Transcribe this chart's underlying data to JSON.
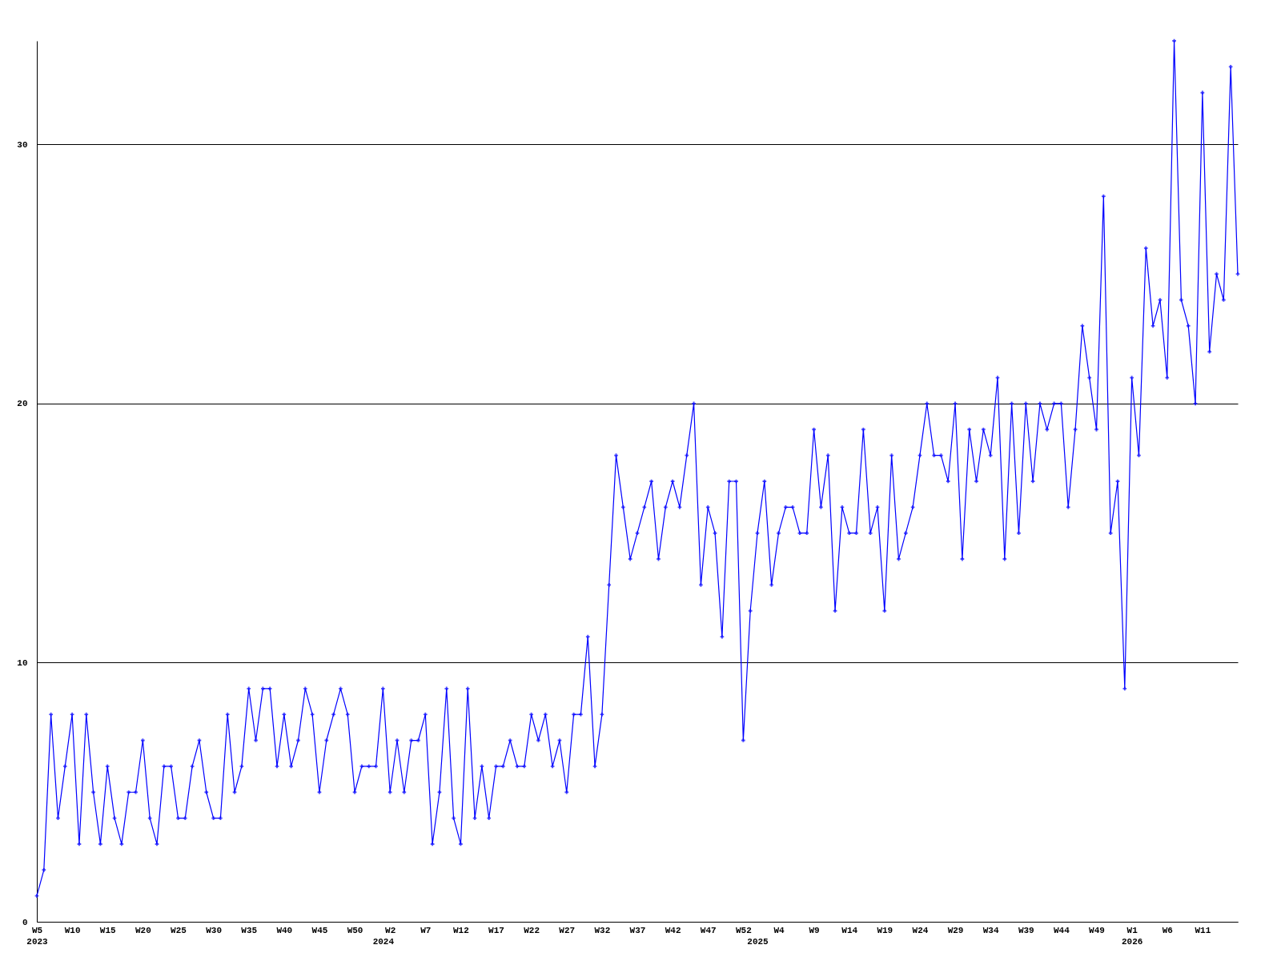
{
  "chart_data": {
    "type": "line",
    "categories": [
      "W5\n2023",
      null,
      null,
      null,
      null,
      "W10",
      null,
      null,
      null,
      null,
      "W15",
      null,
      null,
      null,
      null,
      "W20",
      null,
      null,
      null,
      null,
      "W25",
      null,
      null,
      null,
      null,
      "W30",
      null,
      null,
      null,
      null,
      "W35",
      null,
      null,
      null,
      null,
      "W40",
      null,
      null,
      null,
      null,
      "W45",
      null,
      null,
      null,
      null,
      "W50",
      null,
      null,
      null,
      "\n2024",
      "W2",
      null,
      null,
      null,
      null,
      "W7",
      null,
      null,
      null,
      null,
      "W12",
      null,
      null,
      null,
      null,
      "W17",
      null,
      null,
      null,
      null,
      "W22",
      null,
      null,
      null,
      null,
      "W27",
      null,
      null,
      null,
      null,
      "W32",
      null,
      null,
      null,
      null,
      "W37",
      null,
      null,
      null,
      null,
      "W42",
      null,
      null,
      null,
      null,
      "W47",
      null,
      null,
      null,
      null,
      "W52",
      null,
      "\n2025",
      null,
      null,
      "W4",
      null,
      null,
      null,
      null,
      "W9",
      null,
      null,
      null,
      null,
      "W14",
      null,
      null,
      null,
      null,
      "W19",
      null,
      null,
      null,
      null,
      "W24",
      null,
      null,
      null,
      null,
      "W29",
      null,
      null,
      null,
      null,
      "W34",
      null,
      null,
      null,
      null,
      "W39",
      null,
      null,
      null,
      null,
      "W44",
      null,
      null,
      null,
      null,
      "W49",
      null,
      null,
      null,
      null,
      "W1\n2026",
      null,
      null,
      null,
      null,
      "W6",
      null,
      null,
      null,
      null,
      "W11",
      null,
      null,
      null,
      null,
      null
    ],
    "values": [
      1,
      2,
      8,
      4,
      6,
      8,
      3,
      8,
      5,
      3,
      6,
      4,
      3,
      5,
      5,
      7,
      4,
      3,
      6,
      6,
      4,
      4,
      6,
      7,
      5,
      4,
      4,
      8,
      5,
      6,
      9,
      7,
      9,
      9,
      6,
      8,
      6,
      7,
      9,
      8,
      5,
      7,
      8,
      9,
      8,
      5,
      6,
      6,
      6,
      9,
      5,
      7,
      5,
      7,
      7,
      8,
      3,
      5,
      9,
      4,
      3,
      9,
      4,
      6,
      4,
      6,
      6,
      7,
      6,
      6,
      8,
      7,
      8,
      6,
      7,
      5,
      8,
      8,
      11,
      6,
      8,
      13,
      18,
      16,
      14,
      15,
      16,
      17,
      14,
      16,
      17,
      16,
      18,
      20,
      13,
      16,
      15,
      11,
      17,
      17,
      7,
      12,
      15,
      17,
      13,
      15,
      16,
      16,
      15,
      15,
      19,
      16,
      18,
      12,
      16,
      15,
      15,
      19,
      15,
      16,
      12,
      18,
      14,
      15,
      16,
      18,
      20,
      18,
      18,
      17,
      20,
      14,
      19,
      17,
      19,
      18,
      21,
      14,
      20,
      15,
      20,
      17,
      20,
      19,
      20,
      20,
      16,
      19,
      23,
      21,
      19,
      28,
      15,
      17,
      9,
      21,
      18,
      26,
      23,
      24,
      21,
      34,
      24,
      23,
      20,
      32,
      22,
      25,
      24,
      33,
      25
    ],
    "color": "#0000ff",
    "ylim": [
      0,
      34
    ],
    "yticks": [
      0,
      10,
      20,
      30
    ],
    "grid": "y",
    "marker": "cross"
  }
}
